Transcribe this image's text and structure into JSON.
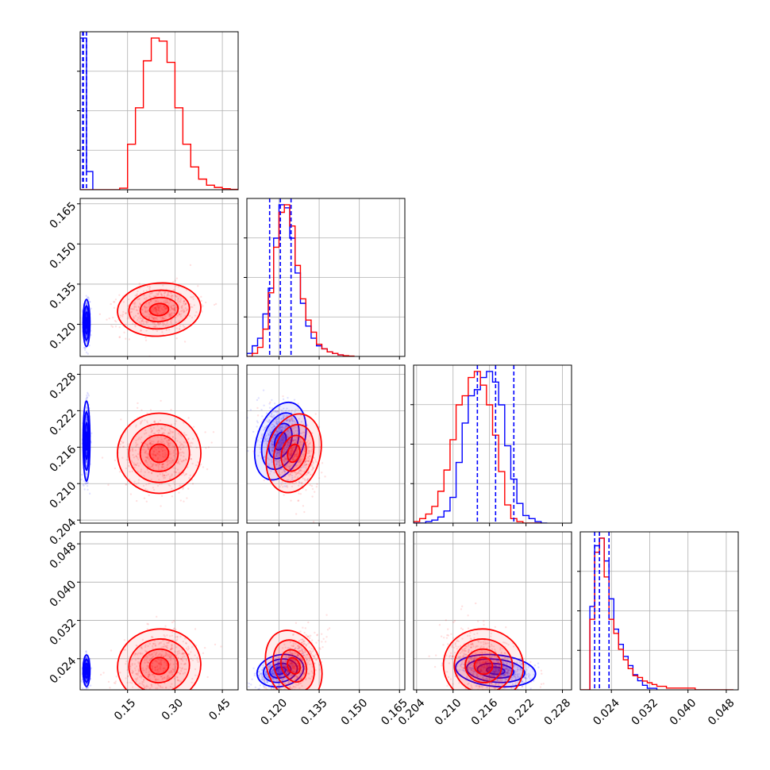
{
  "chart_data": {
    "type": "corner",
    "colors": {
      "reference": "#0000ff",
      "comparison": "#ff0000",
      "grid": "#b0b0b0",
      "frame": "#000000"
    },
    "grid": true,
    "parameters": [
      {
        "ticks": [
          0.15,
          0.3,
          0.45
        ],
        "tick_labels": [
          "0.15",
          "0.30",
          "0.45"
        ],
        "range": [
          0.0,
          0.5
        ]
      },
      {
        "ticks": [
          0.12,
          0.135,
          0.15,
          0.165
        ],
        "tick_labels": [
          "0.120",
          "0.135",
          "0.150",
          "0.165"
        ],
        "range": [
          0.108,
          0.167
        ]
      },
      {
        "ticks": [
          0.204,
          0.21,
          0.216,
          0.222,
          0.228
        ],
        "tick_labels": [
          "0.204",
          "0.210",
          "0.216",
          "0.222",
          "0.228"
        ],
        "range": [
          0.2035,
          0.2295
        ]
      },
      {
        "ticks": [
          0.024,
          0.032,
          0.04,
          0.048
        ],
        "tick_labels": [
          "0.024",
          "0.032",
          "0.040",
          "0.048"
        ],
        "range": [
          0.0175,
          0.0505
        ]
      }
    ],
    "series": [
      {
        "color": "#0000ff",
        "centers": [
          0.02,
          0.1205,
          0.217,
          0.0215
        ],
        "quantiles_dashed": [
          [
            0.008,
            0.01,
            0.02
          ],
          [
            0.1165,
            0.1205,
            0.1245
          ],
          [
            0.214,
            0.217,
            0.22
          ],
          [
            0.0205,
            0.0215,
            0.0235
          ]
        ],
        "spread": [
          0.005,
          0.004,
          0.003,
          0.0015
        ],
        "correlations": [
          [
            1,
            0,
            0,
            0
          ],
          [
            0,
            1,
            -0.35,
            0.55
          ],
          [
            0,
            -0.35,
            1,
            -0.4
          ],
          [
            0,
            0.55,
            -0.4,
            1
          ]
        ],
        "histograms": [
          {
            "edges_start": 0.0,
            "bin": 0.02,
            "counts": [
              1.0,
              0.12
            ]
          },
          {
            "edges_start": 0.108,
            "bin": 0.002,
            "counts": [
              0.02,
              0.07,
              0.12,
              0.28,
              0.45,
              0.78,
              1.0,
              0.98,
              0.78,
              0.55,
              0.35,
              0.2,
              0.12,
              0.07,
              0.05,
              0.03,
              0.02,
              0.01
            ]
          },
          {
            "edges_start": 0.2035,
            "bin": 0.001,
            "counts": [
              0.0,
              0.0,
              0.01,
              0.02,
              0.04,
              0.08,
              0.17,
              0.4,
              0.66,
              0.84,
              0.88,
              0.96,
              1.0,
              0.93,
              0.78,
              0.51,
              0.29,
              0.13,
              0.05,
              0.03,
              0.01,
              0.0
            ]
          },
          {
            "edges_start": 0.0195,
            "bin": 0.001,
            "counts": [
              0.55,
              0.95,
              1.0,
              0.85,
              0.6,
              0.4,
              0.3,
              0.22,
              0.16,
              0.1,
              0.06,
              0.03,
              0.01,
              0.01
            ]
          }
        ]
      },
      {
        "color": "#ff0000",
        "centers": [
          0.25,
          0.1255,
          0.215,
          0.0225
        ],
        "spread": [
          0.06,
          0.0045,
          0.003,
          0.0035
        ],
        "correlations": [
          [
            1,
            0.2,
            0.0,
            0.25
          ],
          [
            0.2,
            1,
            -0.3,
            0.55
          ],
          [
            0.0,
            -0.3,
            1,
            -0.3
          ],
          [
            0.25,
            0.55,
            -0.3,
            1
          ]
        ],
        "histograms": [
          {
            "edges_start": 0.0,
            "bin": 0.025,
            "counts": [
              0,
              0,
              0,
              0,
              0,
              0.01,
              0.3,
              0.54,
              0.85,
              1.0,
              0.98,
              0.84,
              0.54,
              0.3,
              0.15,
              0.07,
              0.03,
              0.015,
              0.007,
              0.002
            ]
          },
          {
            "edges_start": 0.108,
            "bin": 0.002,
            "counts": [
              0.0,
              0.02,
              0.06,
              0.18,
              0.42,
              0.72,
              0.95,
              1.0,
              0.86,
              0.6,
              0.38,
              0.24,
              0.16,
              0.08,
              0.05,
              0.03,
              0.02,
              0.01,
              0.005,
              0.002
            ]
          },
          {
            "edges_start": 0.2035,
            "bin": 0.001,
            "counts": [
              0.01,
              0.03,
              0.06,
              0.11,
              0.21,
              0.35,
              0.55,
              0.78,
              0.84,
              0.96,
              1.0,
              0.91,
              0.78,
              0.58,
              0.34,
              0.12,
              0.03,
              0.01,
              0.0,
              0.0,
              0.0
            ]
          },
          {
            "edges_start": 0.0175,
            "bin": 0.001,
            "counts": [
              0.0,
              0.0,
              0.4,
              0.78,
              0.86,
              0.64,
              0.4,
              0.32,
              0.23,
              0.17,
              0.12,
              0.08,
              0.07,
              0.05,
              0.04,
              0.03,
              0.02,
              0.02,
              0.01,
              0.01,
              0.01,
              0.01,
              0.01,
              0.01,
              0.0,
              0.0,
              0.0,
              0.0,
              0.0,
              0.0,
              0.0,
              0.0
            ]
          }
        ]
      }
    ]
  }
}
